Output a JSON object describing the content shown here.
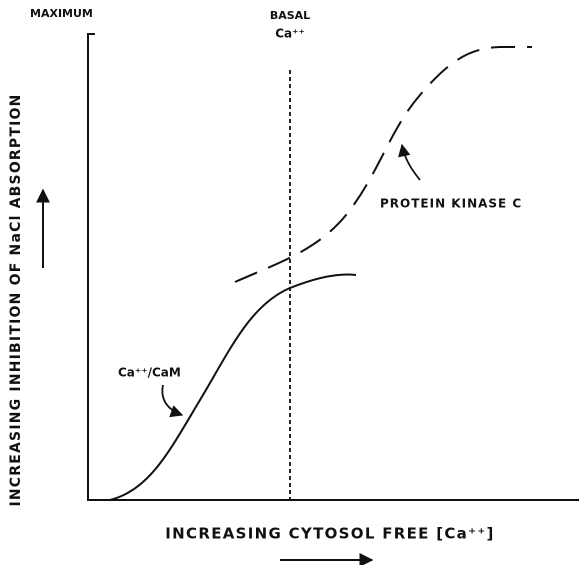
{
  "labels": {
    "maximum": "MAXIMUM",
    "basal": "BASAL",
    "basal_ca": "Ca⁺⁺",
    "protein_kinase_c": "PROTEIN KINASE C",
    "ca_cam": "Ca⁺⁺/CaM",
    "y_axis": "INCREASING INHIBITION OF NaCl ABSORPTION",
    "x_axis": "INCREASING CYTOSOL FREE [Ca⁺⁺]"
  }
}
